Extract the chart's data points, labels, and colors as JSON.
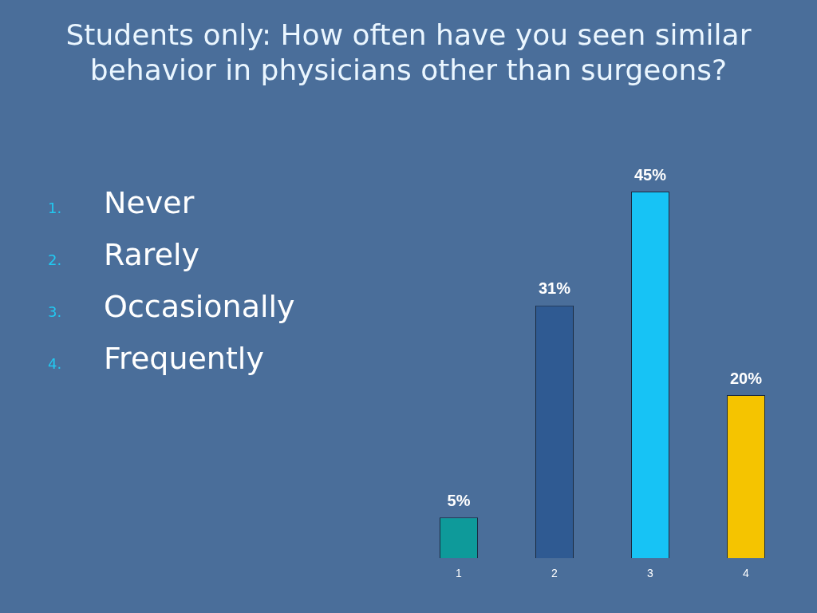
{
  "chart_data": {
    "type": "bar",
    "title": "Students only: How often have you seen similar behavior in physicians other than surgeons?",
    "categories": [
      "1",
      "2",
      "3",
      "4"
    ],
    "values": [
      5,
      31,
      45,
      20
    ],
    "colors": [
      "#0e9a9a",
      "#2f5a92",
      "#17c3f5",
      "#f5c400"
    ],
    "value_labels": [
      "5%",
      "31%",
      "45%",
      "20%"
    ],
    "annotations": [
      "1. Never",
      "2. Rarely",
      "3. Occasionally",
      "4. Frequently"
    ],
    "grid": false,
    "legend": false
  }
}
